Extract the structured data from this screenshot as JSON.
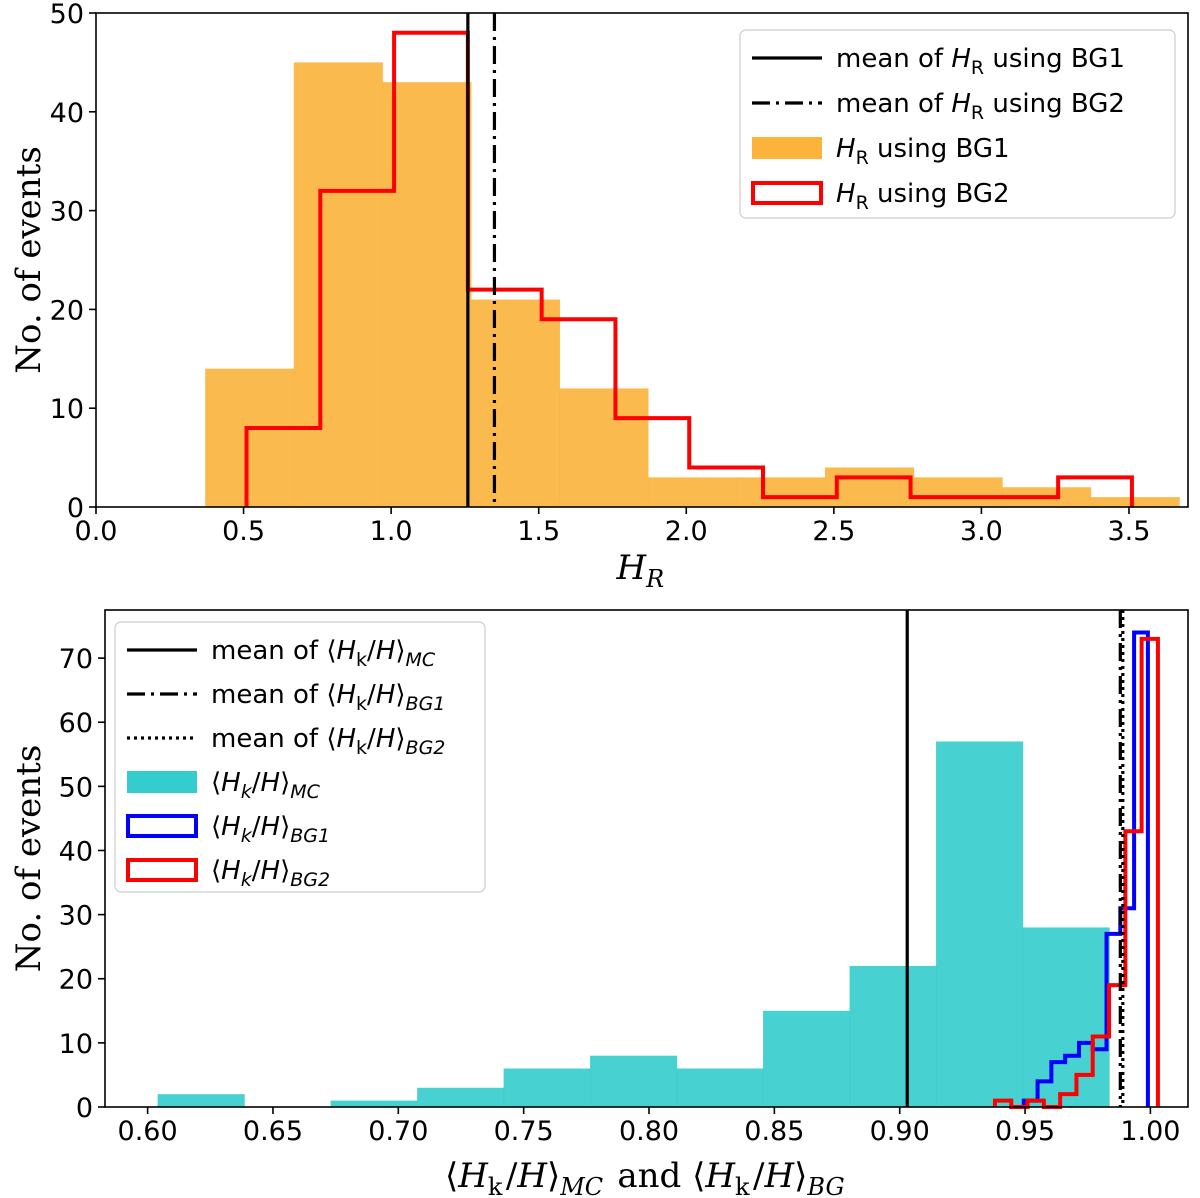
{
  "chart_data": [
    {
      "type": "bar",
      "panel": "top",
      "xlabel": "H_R",
      "ylabel": "No. of events",
      "xlim": [
        0.0,
        3.7
      ],
      "ylim": [
        0,
        50
      ],
      "xticks": [
        "0.0",
        "0.5",
        "1.0",
        "1.5",
        "2.0",
        "2.5",
        "3.0",
        "3.5"
      ],
      "yticks": [
        "0",
        "10",
        "20",
        "30",
        "40",
        "50"
      ],
      "grid": false,
      "legend_position": "top-right",
      "series": [
        {
          "name": "H_R using BG1",
          "style": "filled-histogram",
          "color": "#fbb33a",
          "bin_edges": [
            0.37,
            0.67,
            0.97,
            1.27,
            1.57,
            1.87,
            2.17,
            2.47,
            2.77,
            3.07,
            3.37,
            3.67
          ],
          "counts": [
            14,
            45,
            43,
            21,
            12,
            3,
            3,
            4,
            3,
            2,
            1
          ]
        },
        {
          "name": "H_R using BG2",
          "style": "step-histogram",
          "color": "#ff0000",
          "bin_edges": [
            0.51,
            0.76,
            1.01,
            1.26,
            1.51,
            1.76,
            2.01,
            2.26,
            2.51,
            2.76,
            3.01,
            3.26,
            3.51
          ],
          "counts": [
            8,
            32,
            48,
            22,
            19,
            9,
            4,
            1,
            3,
            1,
            1,
            3
          ]
        }
      ],
      "vlines": [
        {
          "name": "mean of H_R using BG1",
          "x": 1.26,
          "style": "solid",
          "color": "#000000"
        },
        {
          "name": "mean of H_R using BG2",
          "x": 1.35,
          "style": "dashdot",
          "color": "#000000"
        }
      ],
      "legend": [
        {
          "kind": "line-solid",
          "pre": "mean of ",
          "sym": "H",
          "sub": "R",
          "post": " using BG1"
        },
        {
          "kind": "line-dashdot",
          "pre": "mean of ",
          "sym": "H",
          "sub": "R",
          "post": " using BG2"
        },
        {
          "kind": "patch-filled",
          "color": "#fbb33a",
          "pre": "",
          "sym": "H",
          "sub": "R",
          "post": " using BG1"
        },
        {
          "kind": "patch-outline",
          "color": "#ff0000",
          "pre": "",
          "sym": "H",
          "sub": "R",
          "post": " using BG2"
        }
      ]
    },
    {
      "type": "bar",
      "panel": "bottom",
      "xlabel": "⟨H_k/H⟩_MC and ⟨H_k/H⟩_BG",
      "ylabel": "No. of events",
      "xlim": [
        0.583,
        1.015
      ],
      "ylim": [
        0,
        77.5
      ],
      "xticks": [
        "0.60",
        "0.65",
        "0.70",
        "0.75",
        "0.80",
        "0.85",
        "0.90",
        "0.95",
        "1.00"
      ],
      "yticks": [
        "0",
        "10",
        "20",
        "30",
        "40",
        "50",
        "60",
        "70"
      ],
      "grid": false,
      "legend_position": "top-left",
      "series": [
        {
          "name": "⟨H_k/H⟩_MC",
          "style": "filled-histogram",
          "color": "#34cccc",
          "bin_edges": [
            0.604,
            0.6385,
            0.673,
            0.7075,
            0.742,
            0.7765,
            0.811,
            0.8455,
            0.88,
            0.9145,
            0.949,
            0.9835
          ],
          "counts": [
            2,
            0,
            1,
            3,
            6,
            8,
            6,
            15,
            22,
            57,
            28
          ]
        },
        {
          "name": "⟨H_k/H⟩_BG1",
          "style": "step-histogram",
          "color": "#0000ff",
          "bin_edges": [
            0.944,
            0.9495,
            0.955,
            0.9605,
            0.966,
            0.9715,
            0.977,
            0.9825,
            0.988,
            0.9935,
            0.999
          ],
          "counts": [
            0,
            1,
            4,
            7,
            8,
            10,
            9,
            27,
            31,
            74
          ]
        },
        {
          "name": "⟨H_k/H⟩_BG2",
          "style": "step-histogram",
          "color": "#ff0000",
          "bin_edges": [
            0.938,
            0.9445,
            0.951,
            0.9575,
            0.964,
            0.9705,
            0.977,
            0.9835,
            0.99,
            0.9965,
            1.003
          ],
          "counts": [
            1,
            0,
            1,
            0,
            2,
            5,
            11,
            19,
            43,
            73
          ]
        }
      ],
      "vlines": [
        {
          "name": "mean of ⟨H_k/H⟩_MC",
          "x": 0.903,
          "style": "solid",
          "color": "#000000"
        },
        {
          "name": "mean of ⟨H_k/H⟩_BG1",
          "x": 0.988,
          "style": "dashdot",
          "color": "#000000"
        },
        {
          "name": "mean of ⟨H_k/H⟩_BG2",
          "x": 0.989,
          "style": "dotted",
          "color": "#000000"
        }
      ],
      "legend": [
        {
          "kind": "line-solid",
          "pre": "mean of ⟨",
          "sym": "H",
          "sub": "k",
          "mid": "/H⟩",
          "sub2": "MC"
        },
        {
          "kind": "line-dashdot",
          "pre": "mean of ⟨",
          "sym": "H",
          "sub": "k",
          "mid": "/H⟩",
          "sub2": "BG1"
        },
        {
          "kind": "line-dotted",
          "pre": "mean of ⟨",
          "sym": "H",
          "sub": "k",
          "mid": "/H⟩",
          "sub2": "BG2"
        },
        {
          "kind": "patch-filled",
          "color": "#34cccc",
          "pre": "⟨",
          "sym": "H",
          "sub": "k",
          "mid": "/H⟩",
          "sub2": "MC"
        },
        {
          "kind": "patch-outline",
          "color": "#0000ff",
          "pre": "⟨",
          "sym": "H",
          "sub": "k",
          "mid": "/H⟩",
          "sub2": "BG1"
        },
        {
          "kind": "patch-outline",
          "color": "#ff0000",
          "pre": "⟨",
          "sym": "H",
          "sub": "k",
          "mid": "/H⟩",
          "sub2": "BG2"
        }
      ]
    }
  ]
}
